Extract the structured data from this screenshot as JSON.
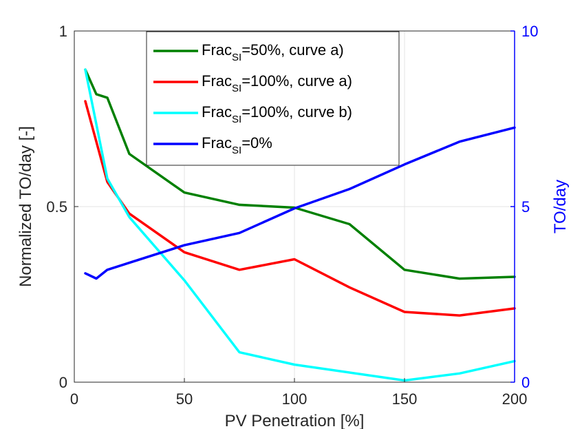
{
  "chart_data": {
    "type": "line",
    "xlabel": "PV Penetration [%]",
    "ylabel_left": "Normalized TO/day [-]",
    "ylabel_right": "TO/day",
    "xlim": [
      0,
      200
    ],
    "ylim_left": [
      0,
      1
    ],
    "ylim_right": [
      0,
      10
    ],
    "x_ticks": [
      "0",
      "50",
      "100",
      "150",
      "200"
    ],
    "y_left_ticks": [
      "0",
      "0.5",
      "1"
    ],
    "y_right_ticks": [
      "0",
      "5",
      "10"
    ],
    "grid": true,
    "legend_position": "top-center",
    "series": [
      {
        "name": "Frac_SI=50%, curve a)",
        "legend_main": "Frac",
        "legend_sub": "SI",
        "legend_rest": "=50%, curve a)",
        "axis": "left",
        "color": "#008000",
        "x": [
          5,
          10,
          15,
          25,
          50,
          75,
          100,
          125,
          150,
          175,
          200
        ],
        "y": [
          0.89,
          0.82,
          0.81,
          0.65,
          0.54,
          0.505,
          0.497,
          0.45,
          0.32,
          0.295,
          0.3
        ]
      },
      {
        "name": "Frac_SI=100%, curve a)",
        "legend_main": "Frac",
        "legend_sub": "SI",
        "legend_rest": "=100%, curve a)",
        "axis": "left",
        "color": "#ff0000",
        "x": [
          5,
          15,
          25,
          50,
          75,
          100,
          125,
          150,
          175,
          200
        ],
        "y": [
          0.8,
          0.57,
          0.48,
          0.37,
          0.32,
          0.35,
          0.27,
          0.2,
          0.19,
          0.21
        ]
      },
      {
        "name": "Frac_SI=100%, curve b)",
        "legend_main": "Frac",
        "legend_sub": "SI",
        "legend_rest": "=100%, curve b)",
        "axis": "left",
        "color": "#00ffff",
        "x": [
          5,
          15,
          25,
          50,
          75,
          100,
          150,
          175,
          200
        ],
        "y": [
          0.89,
          0.58,
          0.47,
          0.29,
          0.085,
          0.05,
          0.005,
          0.025,
          0.06
        ]
      },
      {
        "name": "Frac_SI=0%",
        "legend_main": "Frac",
        "legend_sub": "SI",
        "legend_rest": "=0%",
        "axis": "right",
        "color": "#0000ff",
        "x": [
          5,
          10,
          15,
          25,
          50,
          75,
          100,
          125,
          150,
          175,
          200
        ],
        "y": [
          3.1,
          2.95,
          3.2,
          3.4,
          3.9,
          4.25,
          4.95,
          5.5,
          6.2,
          6.85,
          7.25
        ]
      }
    ]
  }
}
